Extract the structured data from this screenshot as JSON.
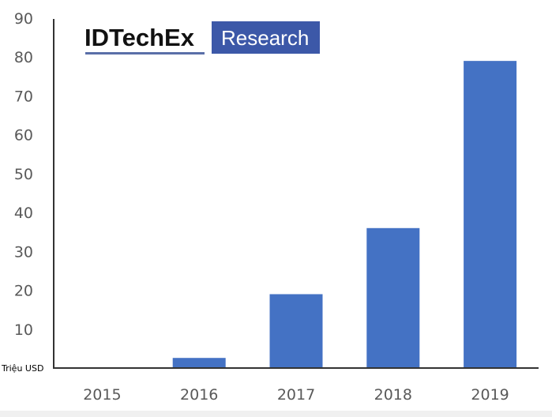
{
  "chart_data": {
    "type": "bar",
    "title": "",
    "xlabel": "",
    "ylabel": "Triệu USD",
    "categories": [
      "2015",
      "2016",
      "2017",
      "2018",
      "2019"
    ],
    "values": [
      0,
      2.6,
      19,
      36,
      79
    ],
    "ylim": [
      0,
      90
    ],
    "yticks": [
      "10",
      "20",
      "30",
      "40",
      "50",
      "60",
      "70",
      "80",
      "90"
    ],
    "grid": false,
    "bar_color": "#4472C4",
    "axis_color": "#333333"
  },
  "logo": {
    "brand": "IDTechEx",
    "tag": "Research",
    "box_color": "#3C58A8",
    "underline_color": "#5A6FA8"
  }
}
